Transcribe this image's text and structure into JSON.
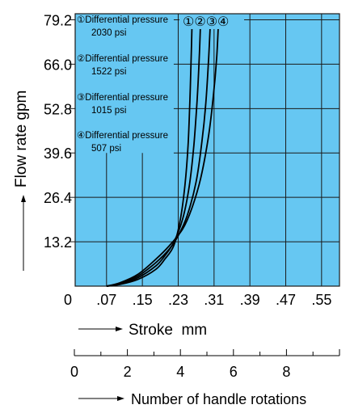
{
  "chart_data": {
    "type": "line",
    "ylabel": "Flow rate gpm",
    "xlabel": "Stroke  mm",
    "x2label": "Number of handle rotations",
    "xlim": [
      0,
      0.59
    ],
    "ylim": [
      0,
      81
    ],
    "x_ticks": [
      "0",
      ".07",
      ".15",
      ".23",
      ".31",
      ".39",
      ".47",
      ".55"
    ],
    "x_tick_values": [
      0,
      0.07,
      0.15,
      0.23,
      0.31,
      0.39,
      0.47,
      0.55
    ],
    "y_ticks": [
      "13.2",
      "26.4",
      "39.6",
      "52.8",
      "66.0",
      "79.2"
    ],
    "y_tick_values": [
      13.2,
      26.4,
      39.6,
      52.8,
      66.0,
      79.2
    ],
    "x2_ticks": [
      "0",
      "2",
      "4",
      "6",
      "8"
    ],
    "x2_tick_values": [
      0,
      2,
      4,
      6,
      8
    ],
    "x2lim": [
      0,
      10
    ],
    "background_color": "#66c7f2",
    "grid_color": "#1a1a1a",
    "series": [
      {
        "name": "①",
        "legend": [
          "①Differential pressure",
          "2030 psi"
        ],
        "points": [
          [
            0.07,
            0
          ],
          [
            0.1,
            0.5
          ],
          [
            0.14,
            2
          ],
          [
            0.18,
            5
          ],
          [
            0.2,
            8
          ],
          [
            0.22,
            12
          ],
          [
            0.235,
            20
          ],
          [
            0.245,
            30
          ],
          [
            0.252,
            42
          ],
          [
            0.256,
            55
          ],
          [
            0.259,
            68
          ],
          [
            0.261,
            79.2
          ]
        ]
      },
      {
        "name": "②",
        "legend": [
          "②Differential pressure",
          "1522 psi"
        ],
        "points": [
          [
            0.07,
            0
          ],
          [
            0.1,
            0.6
          ],
          [
            0.14,
            2.5
          ],
          [
            0.18,
            6
          ],
          [
            0.2,
            9
          ],
          [
            0.22,
            13
          ],
          [
            0.24,
            20
          ],
          [
            0.255,
            30
          ],
          [
            0.265,
            42
          ],
          [
            0.272,
            55
          ],
          [
            0.277,
            68
          ],
          [
            0.28,
            79.2
          ]
        ]
      },
      {
        "name": "③",
        "legend": [
          "③Differential pressure",
          "1015 psi"
        ],
        "points": [
          [
            0.07,
            0
          ],
          [
            0.1,
            0.8
          ],
          [
            0.14,
            3
          ],
          [
            0.18,
            7
          ],
          [
            0.21,
            11
          ],
          [
            0.23,
            15
          ],
          [
            0.25,
            21
          ],
          [
            0.27,
            31
          ],
          [
            0.283,
            43
          ],
          [
            0.292,
            55
          ],
          [
            0.298,
            68
          ],
          [
            0.302,
            79.2
          ]
        ]
      },
      {
        "name": "④",
        "legend": [
          "④Differential pressure",
          "507 psi"
        ],
        "points": [
          [
            0.07,
            0
          ],
          [
            0.1,
            1
          ],
          [
            0.14,
            3.5
          ],
          [
            0.18,
            8
          ],
          [
            0.21,
            12
          ],
          [
            0.24,
            17
          ],
          [
            0.26,
            23
          ],
          [
            0.28,
            32
          ],
          [
            0.297,
            44
          ],
          [
            0.308,
            56
          ],
          [
            0.316,
            68
          ],
          [
            0.32,
            79.2
          ]
        ]
      }
    ]
  }
}
